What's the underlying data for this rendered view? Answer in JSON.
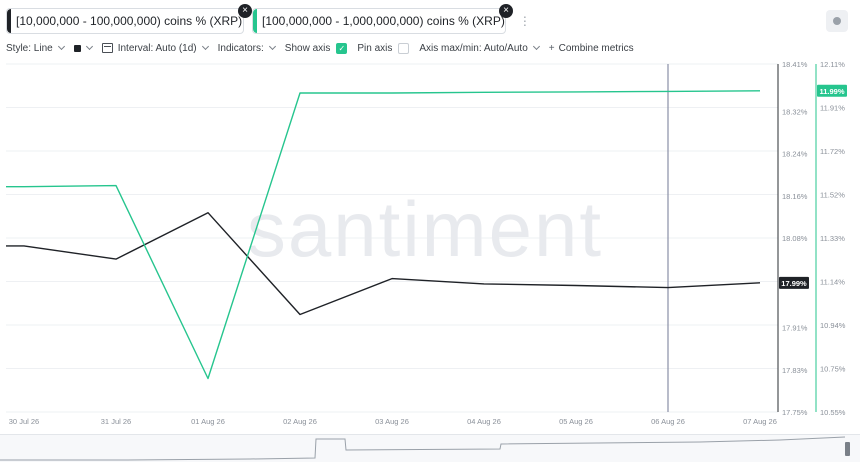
{
  "metrics": [
    {
      "label": "[10,000,000 - 100,000,000) coins % (XRP)",
      "color": "#1f2227"
    },
    {
      "label": "[100,000,000 - 1,000,000,000) coins % (XRP)",
      "color": "#26c58e"
    }
  ],
  "icons": {
    "close": "×",
    "more": "⋮",
    "settings": "settings-icon",
    "checkmark": "✓",
    "plus": "+"
  },
  "toolbar": {
    "style_label": "Style: Line",
    "interval_label": "Interval: Auto (1d)",
    "indicators_label": "Indicators:",
    "show_axis_label": "Show axis",
    "pin_axis_label": "Pin axis",
    "axis_maxmin_label": "Axis max/min: Auto/Auto",
    "combine_label": "Combine metrics"
  },
  "watermark": "santiment",
  "chart_data": {
    "type": "line",
    "x": [
      "30 Jul 26",
      "31 Jul 26",
      "01 Aug 26",
      "02 Aug 26",
      "03 Aug 26",
      "04 Aug 26",
      "05 Aug 26",
      "06 Aug 26",
      "07 Aug 26"
    ],
    "series": [
      {
        "name": "[10,000,000 - 100,000,000) coins % (XRP)",
        "color": "#1f2227",
        "axis": "left",
        "values": [
          18.065,
          18.04,
          18.128,
          17.935,
          18.003,
          17.993,
          17.99,
          17.986,
          17.995
        ],
        "last_label": "17.99%"
      },
      {
        "name": "[100,000,000 - 1,000,000,000) coins % (XRP)",
        "color": "#26c58e",
        "axis": "right",
        "values": [
          11.56,
          11.565,
          10.7,
          11.98,
          11.98,
          11.983,
          11.985,
          11.987,
          11.99
        ],
        "last_label": "11.99%"
      }
    ],
    "left_axis": {
      "ticks": [
        "18.41%",
        "18.32%",
        "18.24%",
        "18.16%",
        "18.08%",
        "17.91%",
        "17.83%",
        "17.75%"
      ],
      "range": [
        17.75,
        18.41
      ]
    },
    "right_axis": {
      "ticks": [
        "12.11%",
        "11.91%",
        "11.72%",
        "11.52%",
        "11.33%",
        "11.14%",
        "10.94%",
        "10.75%",
        "10.55%"
      ],
      "range": [
        10.55,
        12.11
      ]
    },
    "crosshair_date": "06 Aug 26",
    "grid": true
  }
}
